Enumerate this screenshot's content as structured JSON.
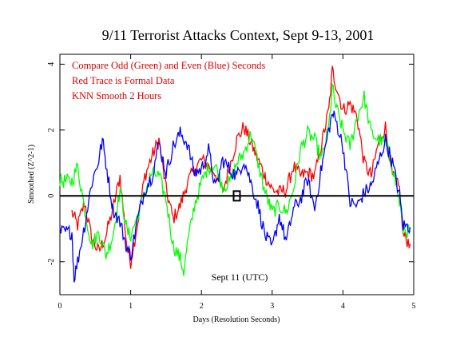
{
  "chart_data": {
    "type": "line",
    "title": "9/11 Terrorist Attacks Context, Sept 9-13, 2001",
    "xlabel": "Days (Resolution Seconds)",
    "ylabel": "Smoothed (Z^2-1)",
    "xlim": [
      0,
      5
    ],
    "ylim": [
      -3,
      4.3
    ],
    "x_ticks": [
      0,
      1,
      2,
      3,
      4,
      5
    ],
    "y_ticks": [
      -2,
      0,
      2,
      4
    ],
    "annotations": [
      "Compare Odd (Green) and Even (Blue) Seconds",
      "Red Trace is Formal Data",
      "KNN Smooth 2 Hours",
      "Sept 11 (UTC)"
    ],
    "series": [
      {
        "color": "#ff0000",
        "x": [
          0.17,
          0.25,
          0.35,
          0.45,
          0.55,
          0.65,
          0.75,
          0.85,
          0.95,
          1.0,
          1.1,
          1.2,
          1.3,
          1.4,
          1.5,
          1.6,
          1.7,
          1.8,
          1.9,
          2.0,
          2.1,
          2.2,
          2.3,
          2.4,
          2.5,
          2.6,
          2.7,
          2.8,
          2.9,
          3.0,
          3.1,
          3.2,
          3.3,
          3.4,
          3.5,
          3.6,
          3.7,
          3.8,
          3.85,
          3.9,
          4.0,
          4.1,
          4.2,
          4.3,
          4.4,
          4.5,
          4.6,
          4.7,
          4.8,
          4.85,
          4.95
        ],
        "y": [
          -0.5,
          -0.9,
          -0.2,
          -1.3,
          -1.7,
          -1.2,
          -0.4,
          0.6,
          -1.6,
          -2.0,
          -0.8,
          0.6,
          1.2,
          1.7,
          0.2,
          -0.7,
          -0.3,
          0.4,
          0.8,
          1.1,
          0.9,
          0.7,
          0.1,
          0.9,
          1.7,
          2.1,
          1.6,
          1.1,
          0.6,
          0.2,
          0.1,
          0.2,
          0.9,
          0.6,
          0.7,
          0.6,
          1.6,
          2.6,
          3.8,
          3.4,
          2.6,
          2.8,
          2.4,
          1.0,
          0.6,
          1.6,
          2.1,
          0.6,
          0.2,
          -1.2,
          -1.45
        ]
      },
      {
        "color": "#00ff00",
        "x": [
          0.0,
          0.17,
          0.25,
          0.35,
          0.45,
          0.55,
          0.65,
          0.75,
          0.85,
          0.95,
          1.0,
          1.1,
          1.2,
          1.3,
          1.4,
          1.5,
          1.6,
          1.7,
          1.75,
          1.8,
          1.9,
          2.0,
          2.1,
          2.2,
          2.3,
          2.4,
          2.5,
          2.6,
          2.7,
          2.8,
          2.9,
          3.0,
          3.1,
          3.2,
          3.3,
          3.4,
          3.5,
          3.6,
          3.7,
          3.8,
          3.85,
          3.9,
          4.0,
          4.1,
          4.2,
          4.3,
          4.4,
          4.5,
          4.6,
          4.7,
          4.8,
          4.85,
          4.95
        ],
        "y": [
          0.45,
          0.45,
          0.9,
          -0.4,
          -1.5,
          -1.1,
          -1.8,
          -1.2,
          0.2,
          -1.1,
          -1.2,
          -0.6,
          0.1,
          0.7,
          0.6,
          -0.1,
          -1.5,
          -1.9,
          -2.3,
          -1.5,
          -0.3,
          0.4,
          0.9,
          0.9,
          0.3,
          0.4,
          1.0,
          1.3,
          1.9,
          1.0,
          0.1,
          -0.5,
          -0.3,
          -0.5,
          0.2,
          1.4,
          1.9,
          1.7,
          1.1,
          2.1,
          3.3,
          2.7,
          2.0,
          1.5,
          2.4,
          3.0,
          1.9,
          1.7,
          1.6,
          0.9,
          -0.2,
          -1.0,
          -1.1
        ]
      },
      {
        "color": "#0000ff",
        "x": [
          0.0,
          0.17,
          0.2,
          0.25,
          0.35,
          0.45,
          0.55,
          0.6,
          0.65,
          0.75,
          0.85,
          0.95,
          1.0,
          1.1,
          1.2,
          1.3,
          1.4,
          1.5,
          1.6,
          1.7,
          1.8,
          1.9,
          2.0,
          2.1,
          2.2,
          2.3,
          2.4,
          2.5,
          2.6,
          2.7,
          2.8,
          2.9,
          3.0,
          3.1,
          3.2,
          3.3,
          3.4,
          3.5,
          3.6,
          3.7,
          3.8,
          3.85,
          3.9,
          4.0,
          4.1,
          4.2,
          4.3,
          4.4,
          4.5,
          4.6,
          4.7,
          4.8,
          4.85,
          4.95
        ],
        "y": [
          -1.1,
          -1.1,
          -2.5,
          -2.0,
          -0.9,
          0.4,
          1.1,
          1.7,
          1.0,
          -0.4,
          -0.8,
          -1.6,
          -1.8,
          -0.7,
          0.2,
          0.6,
          1.6,
          0.7,
          1.5,
          1.9,
          1.6,
          0.7,
          0.8,
          1.4,
          0.2,
          1.1,
          0.8,
          0.6,
          1.1,
          0.4,
          -0.3,
          -1.2,
          -1.6,
          -0.6,
          -1.4,
          -0.4,
          -0.1,
          0.5,
          -0.4,
          0.9,
          2.0,
          2.5,
          2.3,
          1.5,
          -0.2,
          -0.3,
          0.1,
          0.3,
          1.0,
          1.7,
          1.0,
          0.0,
          -0.9,
          -0.95
        ]
      }
    ],
    "marker": {
      "x": 2.5,
      "y": 0,
      "shape": "square"
    }
  }
}
